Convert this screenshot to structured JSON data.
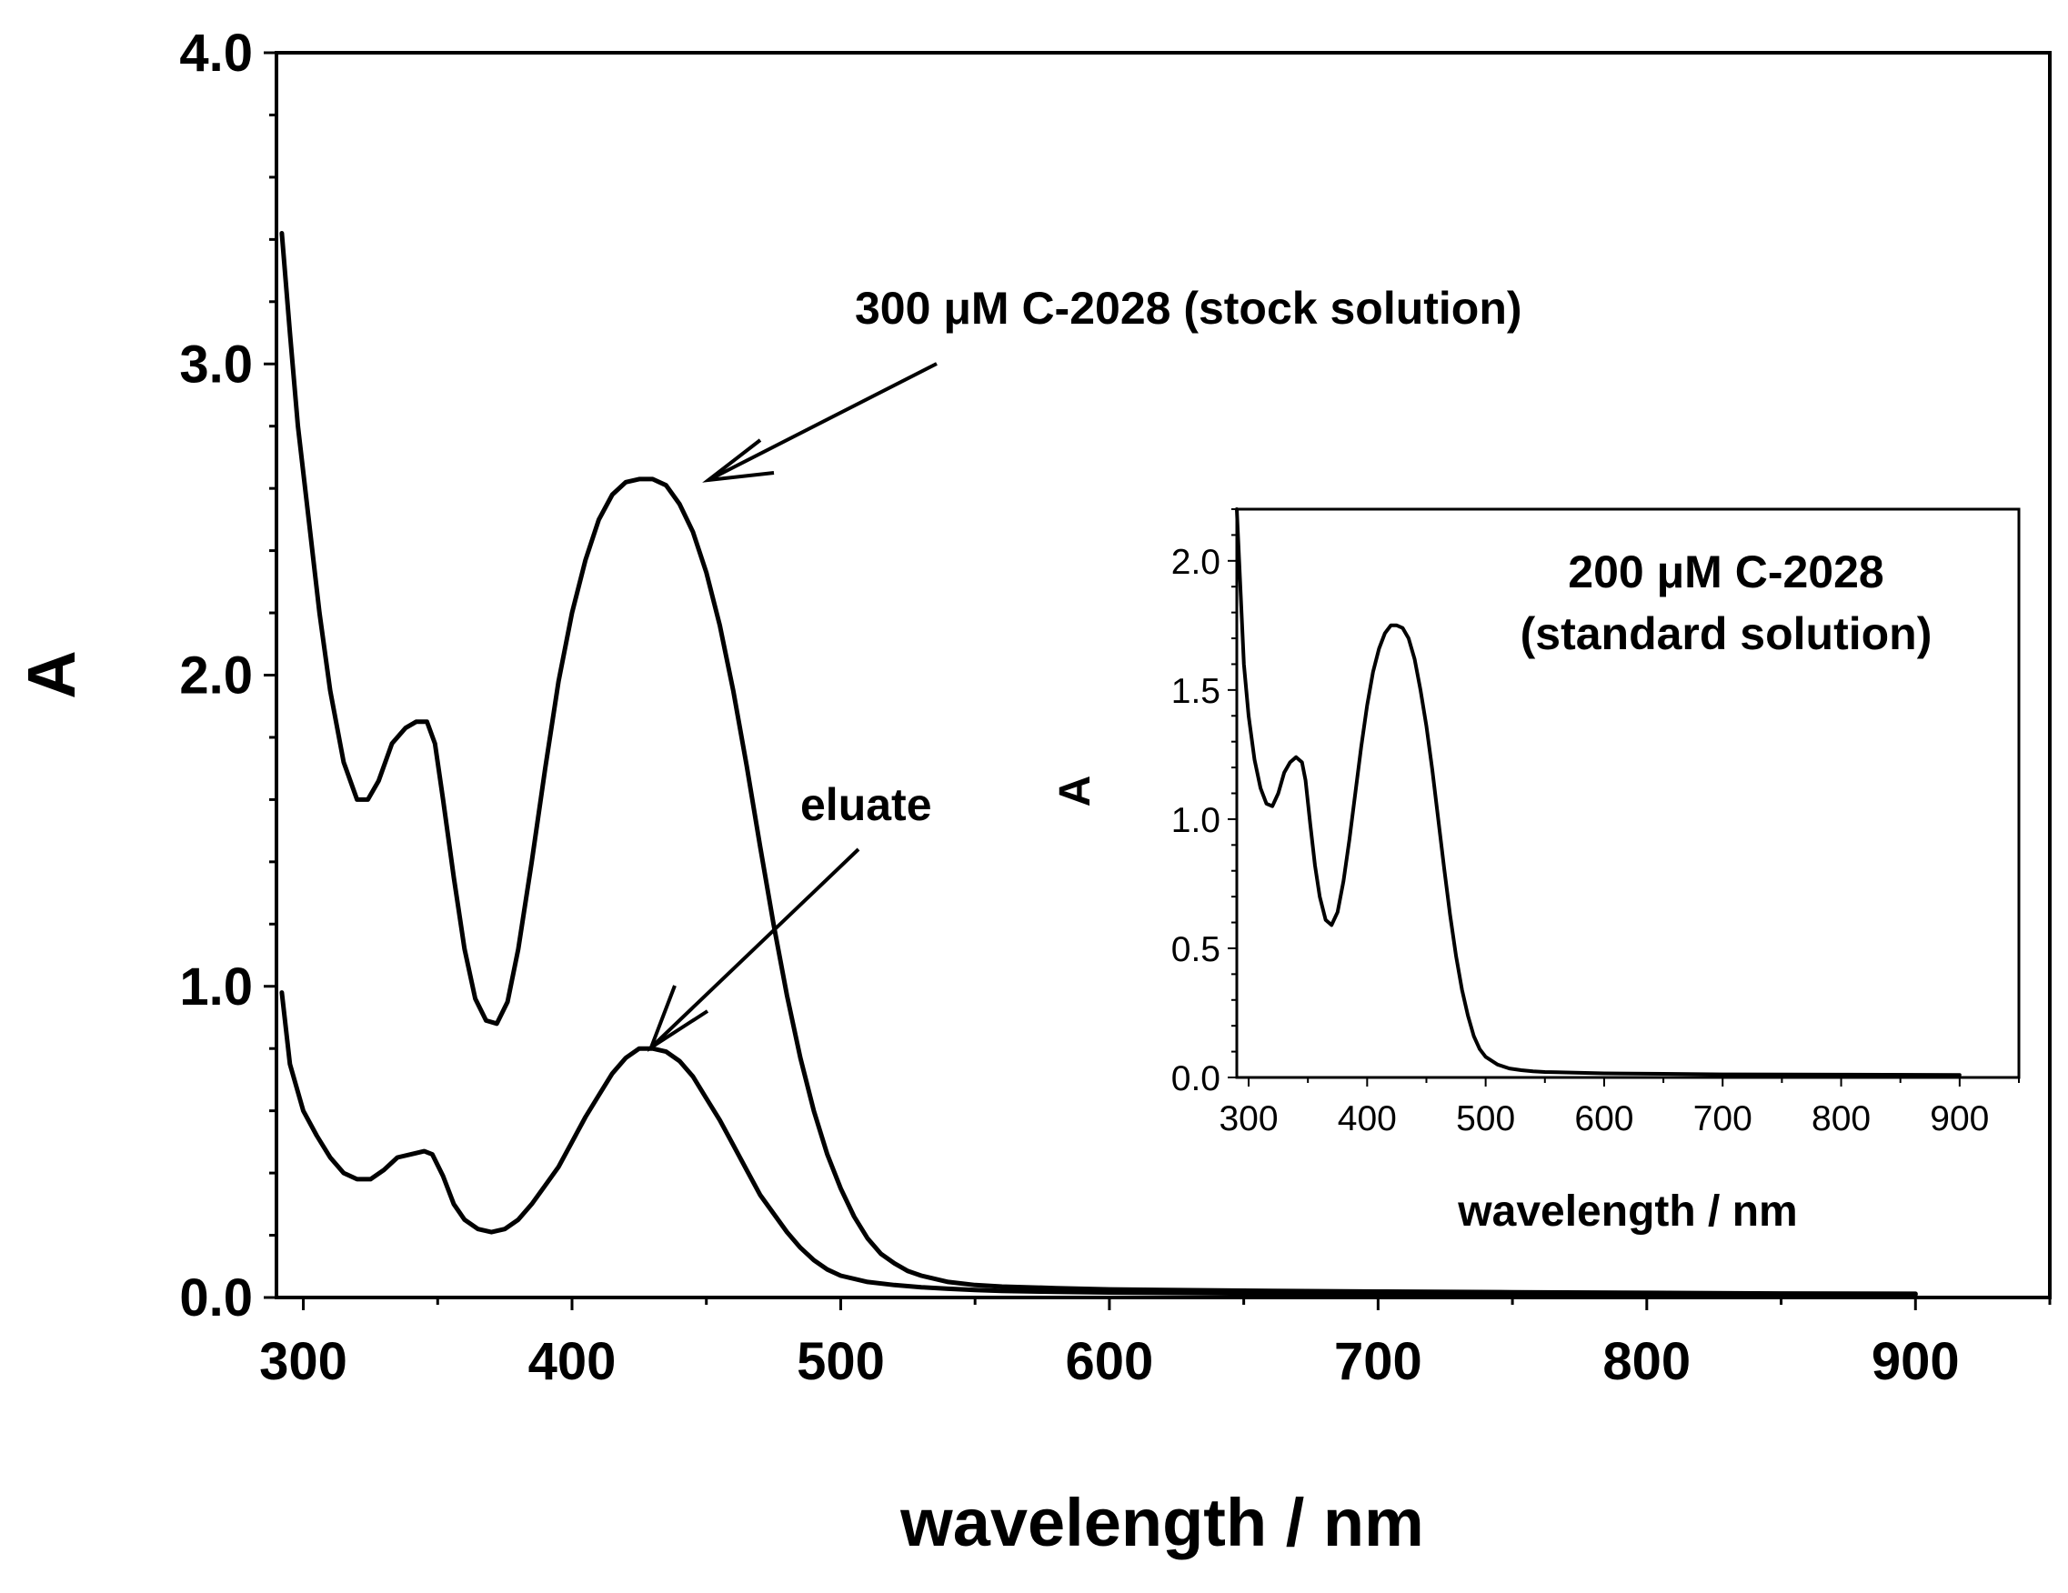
{
  "chart_data": [
    {
      "type": "line",
      "title": "",
      "xlabel": "wavelength / nm",
      "ylabel": "A",
      "xlim": [
        290,
        950
      ],
      "ylim": [
        0,
        4
      ],
      "x_ticks": [
        300,
        400,
        500,
        600,
        700,
        800,
        900
      ],
      "x_tick_labels": [
        "300",
        "400",
        "500",
        "600",
        "700",
        "800",
        "900"
      ],
      "y_ticks": [
        0,
        1,
        2,
        3,
        4
      ],
      "y_tick_labels": [
        "0.0",
        "1.0",
        "2.0",
        "3.0",
        "4.0"
      ],
      "grid": false,
      "legend": "none",
      "line_color": "#000000",
      "annotations": [
        {
          "text": "300 μM C-2028 (stock solution)",
          "points_to": [
            428,
            2.6
          ]
        },
        {
          "text": "eluate",
          "points_to": [
            428,
            0.8
          ]
        }
      ],
      "series": [
        {
          "x": [
            292,
            295,
            298,
            302,
            306,
            310,
            315,
            320,
            324,
            328,
            333,
            338,
            342,
            346,
            349,
            352,
            356,
            360,
            364,
            368,
            372,
            376,
            380,
            385,
            390,
            395,
            400,
            405,
            410,
            415,
            420,
            425,
            430,
            435,
            440,
            445,
            450,
            455,
            460,
            465,
            470,
            475,
            480,
            485,
            490,
            495,
            500,
            505,
            510,
            515,
            520,
            525,
            530,
            540,
            550,
            560,
            580,
            600,
            650,
            700,
            750,
            800,
            850,
            900
          ],
          "y": [
            3.42,
            3.1,
            2.8,
            2.5,
            2.2,
            1.95,
            1.72,
            1.6,
            1.6,
            1.66,
            1.78,
            1.83,
            1.85,
            1.85,
            1.78,
            1.6,
            1.35,
            1.12,
            0.96,
            0.89,
            0.88,
            0.95,
            1.12,
            1.4,
            1.7,
            1.98,
            2.2,
            2.37,
            2.5,
            2.58,
            2.62,
            2.63,
            2.63,
            2.61,
            2.55,
            2.46,
            2.33,
            2.16,
            1.95,
            1.71,
            1.45,
            1.2,
            0.97,
            0.77,
            0.6,
            0.46,
            0.35,
            0.26,
            0.19,
            0.14,
            0.11,
            0.085,
            0.07,
            0.05,
            0.04,
            0.035,
            0.03,
            0.026,
            0.022,
            0.019,
            0.017,
            0.015,
            0.013,
            0.012
          ]
        },
        {
          "x": [
            292,
            295,
            300,
            305,
            310,
            315,
            320,
            325,
            330,
            335,
            340,
            345,
            348,
            352,
            356,
            360,
            365,
            370,
            375,
            380,
            385,
            390,
            395,
            400,
            405,
            410,
            415,
            420,
            425,
            430,
            435,
            440,
            445,
            450,
            455,
            460,
            465,
            470,
            475,
            480,
            485,
            490,
            495,
            500,
            510,
            520,
            530,
            540,
            550,
            560,
            580,
            600,
            650,
            700,
            800,
            900
          ],
          "y": [
            0.98,
            0.75,
            0.6,
            0.52,
            0.45,
            0.4,
            0.38,
            0.38,
            0.41,
            0.45,
            0.46,
            0.47,
            0.46,
            0.39,
            0.3,
            0.25,
            0.22,
            0.21,
            0.22,
            0.25,
            0.3,
            0.36,
            0.42,
            0.5,
            0.58,
            0.65,
            0.72,
            0.77,
            0.8,
            0.8,
            0.79,
            0.76,
            0.71,
            0.64,
            0.57,
            0.49,
            0.41,
            0.33,
            0.27,
            0.21,
            0.16,
            0.12,
            0.09,
            0.07,
            0.05,
            0.04,
            0.033,
            0.028,
            0.024,
            0.021,
            0.018,
            0.016,
            0.013,
            0.011,
            0.01,
            0.01
          ]
        }
      ]
    },
    {
      "type": "line",
      "title": "",
      "xlabel": "wavelength / nm",
      "ylabel": "A",
      "xlim": [
        290,
        950
      ],
      "ylim": [
        0,
        2.2
      ],
      "x_ticks": [
        300,
        400,
        500,
        600,
        700,
        800,
        900
      ],
      "x_tick_labels": [
        "300",
        "400",
        "500",
        "600",
        "700",
        "800",
        "900"
      ],
      "y_ticks": [
        0,
        0.5,
        1.0,
        1.5,
        2.0
      ],
      "y_tick_labels": [
        "0.0",
        "0.5",
        "1.0",
        "1.5",
        "2.0"
      ],
      "grid": false,
      "legend": "none",
      "line_color": "#000000",
      "annotations": [
        {
          "text_line1": "200 μM C-2028",
          "text_line2": "(standard solution)"
        }
      ],
      "series": [
        {
          "x": [
            290,
            293,
            296,
            300,
            305,
            310,
            315,
            320,
            325,
            330,
            335,
            340,
            345,
            348,
            352,
            356,
            360,
            365,
            370,
            375,
            380,
            385,
            390,
            395,
            400,
            405,
            410,
            415,
            420,
            425,
            430,
            435,
            440,
            445,
            450,
            455,
            460,
            465,
            470,
            475,
            480,
            485,
            490,
            495,
            500,
            510,
            520,
            530,
            540,
            550,
            560,
            580,
            600,
            650,
            700,
            800,
            900
          ],
          "y": [
            2.25,
            1.9,
            1.6,
            1.4,
            1.23,
            1.12,
            1.06,
            1.05,
            1.1,
            1.18,
            1.22,
            1.24,
            1.22,
            1.15,
            0.98,
            0.82,
            0.7,
            0.61,
            0.59,
            0.64,
            0.76,
            0.92,
            1.1,
            1.28,
            1.44,
            1.57,
            1.66,
            1.72,
            1.75,
            1.75,
            1.74,
            1.7,
            1.62,
            1.5,
            1.36,
            1.19,
            1.0,
            0.81,
            0.63,
            0.47,
            0.34,
            0.24,
            0.16,
            0.11,
            0.08,
            0.05,
            0.035,
            0.028,
            0.024,
            0.021,
            0.02,
            0.018,
            0.016,
            0.014,
            0.012,
            0.011,
            0.01
          ]
        }
      ]
    }
  ]
}
